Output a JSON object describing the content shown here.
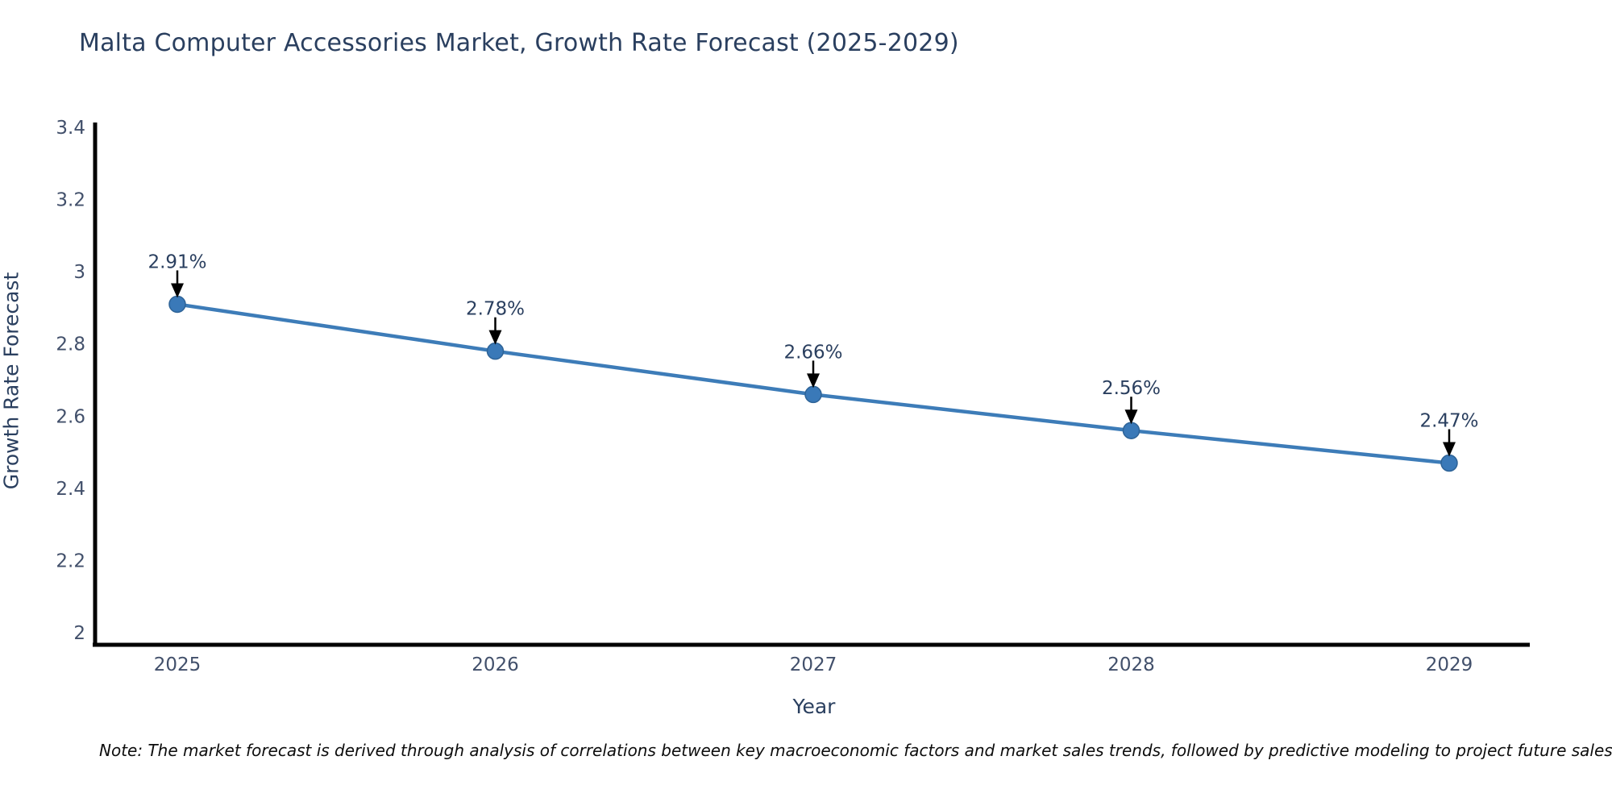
{
  "title": "Malta Computer Accessories Market, Growth Rate Forecast (2025-2029)",
  "note": "Note: The market forecast is derived through analysis of correlations between key macroeconomic factors and market sales trends, followed by predictive modeling to project future sales",
  "chart_data": {
    "type": "line",
    "title": "Malta Computer Accessories Market, Growth Rate Forecast (2025-2029)",
    "xlabel": "Year",
    "ylabel": "Growth Rate Forecast",
    "categories": [
      "2025",
      "2026",
      "2027",
      "2028",
      "2029"
    ],
    "values": [
      2.91,
      2.78,
      2.66,
      2.56,
      2.47
    ],
    "point_labels": [
      "2.91%",
      "2.78%",
      "2.66%",
      "2.56%",
      "2.47%"
    ],
    "ylim": [
      2,
      3.4
    ],
    "yticks": [
      {
        "value": 2,
        "label": "2"
      },
      {
        "value": 2.2,
        "label": "2.2"
      },
      {
        "value": 2.4,
        "label": "2.4"
      },
      {
        "value": 2.6,
        "label": "2.6"
      },
      {
        "value": 2.8,
        "label": "2.8"
      },
      {
        "value": 3,
        "label": "3"
      },
      {
        "value": 3.2,
        "label": "3.2"
      },
      {
        "value": 3.4,
        "label": "3.4"
      }
    ],
    "grid": "off",
    "legend": "none",
    "annotation_style": "value label with down arrow to marker",
    "colors": {
      "line": "#3d7cb8",
      "marker": "#3a79b8",
      "marker_edge": "#2e6397",
      "axis_line": "#000000",
      "tick_label": "#42506b",
      "annotation_text": "#2a3f5f",
      "arrow": "#000000",
      "title_text": "#2a3f5f",
      "background": "#ffffff"
    }
  }
}
